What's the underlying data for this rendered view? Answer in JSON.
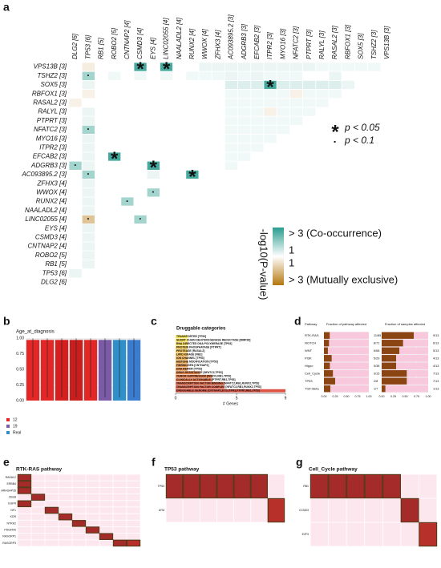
{
  "chart_data": [
    {
      "type": "heatmap",
      "panel": "a",
      "genes": [
        "VPS13B [3]",
        "TSHZ2 [3]",
        "SOX5 [3]",
        "RBFOX1 [3]",
        "RASAL2 [3]",
        "RALYL [3]",
        "PTPRT [3]",
        "NFATC2 [3]",
        "MYO16 [3]",
        "ITPR2 [3]",
        "EFCAB2 [3]",
        "ADGRB3 [3]",
        "AC093895.2 [3]",
        "ZFHX3 [4]",
        "WWOX [4]",
        "RUNX2 [4]",
        "NAALADL2 [4]",
        "LINC02055 [4]",
        "EYS [4]",
        "CSMD3 [4]",
        "CNTNAP2 [4]",
        "ROBO2 [5]",
        "RB1 [5]",
        "TP53 [6]",
        "DLG2 [6]"
      ],
      "rows": [
        [
          0,
          -0.4,
          0,
          0,
          0,
          2.6,
          0,
          2.6,
          0,
          0,
          0.3,
          0.3,
          0.3,
          0.3,
          0.3,
          0.3,
          0.3,
          0.3,
          0.3,
          0.2,
          0.2,
          0.2,
          0.2,
          0.2
        ],
        [
          0,
          1.3,
          0,
          0.2,
          0,
          0.2,
          0,
          0.2,
          0,
          0.2,
          0.2,
          0.2,
          0.3,
          0.2,
          0.3,
          0.2,
          0.2,
          0.2,
          0,
          0,
          0.3,
          0,
          0
        ],
        [
          0,
          0.3,
          0,
          0,
          0,
          0,
          0,
          0,
          0,
          0,
          0,
          0,
          0.5,
          0.5,
          0.5,
          2.6,
          0.5,
          0.5,
          0.5,
          0.5,
          0.5,
          0.3
        ],
        [
          0,
          -0.3,
          0,
          0,
          0,
          0,
          0,
          0,
          0,
          0,
          0,
          0,
          0.2,
          0.2,
          0.2,
          0.2,
          0.2,
          -0.3,
          0.2,
          0.2,
          0.2
        ],
        [
          -0.3,
          0,
          0,
          0,
          0,
          0,
          0,
          0,
          0,
          0,
          0,
          0,
          0.2,
          0.2,
          0.2,
          0.2,
          0.2,
          0.2,
          0.2,
          0.2
        ],
        [
          0,
          0.3,
          0,
          0,
          0,
          0,
          0,
          0,
          0,
          0,
          0,
          0,
          0.2,
          0.2,
          0.2,
          -0.3,
          0.2,
          0.2,
          0.2
        ],
        [
          0,
          0.3,
          0,
          0,
          0,
          0,
          0,
          0,
          0,
          0,
          0,
          0,
          0.2,
          0.2,
          0.2,
          0.2,
          0.2,
          0.2
        ],
        [
          0,
          1.3,
          0,
          0,
          0,
          0,
          0,
          0,
          0,
          0,
          0,
          0,
          0.2,
          0.2,
          0.2,
          0.2,
          0.2
        ],
        [
          0,
          0.3,
          0,
          0,
          0,
          0,
          0,
          0,
          0,
          0,
          0,
          0,
          0.2,
          0.2,
          0.2,
          0.2
        ],
        [
          0,
          0.3,
          0,
          0,
          0,
          0,
          0,
          0,
          0,
          0,
          0,
          0,
          0.2,
          0.2,
          0.2
        ],
        [
          0,
          0.3,
          0,
          2.6,
          0,
          0,
          0,
          0,
          0,
          0,
          0,
          0,
          0.2,
          0.2
        ],
        [
          1.3,
          0.3,
          0,
          0,
          0,
          0,
          2.6,
          0,
          0,
          0,
          0,
          0,
          0.2
        ],
        [
          0,
          1.3,
          0,
          0,
          0,
          0,
          0.3,
          0,
          0,
          2.6,
          0,
          0
        ],
        [
          0,
          0.3,
          0,
          0,
          0,
          0,
          0,
          0,
          0,
          0,
          0
        ],
        [
          0,
          0.3,
          0,
          0,
          0,
          0,
          1.3,
          0,
          0,
          0
        ],
        [
          0,
          0.3,
          0,
          0,
          1.3,
          0,
          0,
          0,
          0
        ],
        [
          0,
          0.3,
          0,
          0,
          0,
          0,
          0,
          0
        ],
        [
          0,
          -1.3,
          0,
          0,
          0,
          1.3,
          0
        ],
        [
          0,
          0.3,
          0,
          0,
          0,
          0
        ],
        [
          0,
          0.3,
          0,
          0,
          0
        ],
        [
          0,
          0.3,
          0,
          0
        ],
        [
          0,
          0.3,
          0
        ],
        [
          0,
          0.3
        ],
        [
          0.3
        ],
        []
      ],
      "significant": [
        {
          "row": 0,
          "col": 5,
          "label": "*"
        },
        {
          "row": 0,
          "col": 7,
          "label": "*"
        },
        {
          "row": 1,
          "col": 1,
          "label": "·"
        },
        {
          "row": 2,
          "col": 15,
          "label": "*"
        },
        {
          "row": 7,
          "col": 1,
          "label": "·"
        },
        {
          "row": 10,
          "col": 3,
          "label": "*"
        },
        {
          "row": 11,
          "col": 0,
          "label": "·"
        },
        {
          "row": 11,
          "col": 6,
          "label": "*"
        },
        {
          "row": 12,
          "col": 1,
          "label": "·"
        },
        {
          "row": 12,
          "col": 9,
          "label": "*"
        },
        {
          "row": 14,
          "col": 6,
          "label": "·"
        },
        {
          "row": 15,
          "col": 4,
          "label": "·"
        },
        {
          "row": 17,
          "col": 1,
          "label": "·"
        },
        {
          "row": 17,
          "col": 5,
          "label": "·"
        }
      ],
      "high_color": "#2a9d8f",
      "low_color": "#b5770e",
      "range": 3,
      "colorbar_title": "-log10(P-value)",
      "legend_labels": [
        "> 3 (Co-occurrence)",
        "1",
        "1",
        "> 3 (Mutually exclusive)"
      ],
      "significance_legend": [
        {
          "symbol": "*",
          "label": "p < 0.05"
        },
        {
          "symbol": "·",
          "label": "p < 0.1"
        }
      ]
    },
    {
      "type": "bar",
      "panel": "b",
      "title": "Age_at_diagnosis",
      "values": [
        0.97,
        0.97,
        0.97,
        0.97,
        0.97,
        0.97,
        0.97,
        0.97
      ],
      "colors": [
        "#e32626",
        "#e32626",
        "#d62020",
        "#c81e1e",
        "#e32626",
        "#7b5aa6",
        "#2f8fc8",
        "#3a7cd0"
      ],
      "ylim": [
        0,
        1
      ],
      "yticks": [
        {
          "value": 0,
          "label": "0.00"
        },
        {
          "value": 0.25,
          "label": "0.25"
        },
        {
          "value": 0.5,
          "label": "0.50"
        },
        {
          "value": 0.75,
          "label": "0.75"
        },
        {
          "value": 1,
          "label": "1.00"
        }
      ],
      "legend": [
        {
          "name": "12",
          "color": "#e32626"
        },
        {
          "name": "19",
          "color": "#7b5aa6"
        },
        {
          "name": "Real",
          "color": "#2f8fc8"
        }
      ]
    },
    {
      "type": "barh",
      "panel": "c",
      "title": "Druggable categories",
      "xlabel": "# Genes",
      "categories": [
        "TRANSPORTER [TP53]",
        "SHORT CHAIN DEHYDROGENASE REDUCTASE [MMP28]",
        "RNA DIRECTED DNA POLYMERASE [TP53]",
        "PROTEIN PHOSPHATASE [PTPRT]",
        "PROTEASE [RASAL2]",
        "LIPID KINASE [RB1]",
        "ION CHANNEL [TP53]",
        "HISTONE MODIFICATION [TP53]",
        "FIBRINOGEN [CNTNAP2]",
        "DNA REPAIR [TP53]",
        "DRUG RESISTANCE [NFATC2,TP53]",
        "TUMOR SUPPRESSOR [WWOX,RB1,TP53]",
        "CLINICALLY ACTIONABLE [PTPRT,RB1,TP53]",
        "TRANSCRIPTION FACTOR BINDING [NFATC2,RB1,RUNX2,TP53]",
        "TRANSCRIPTION FACTOR COMPLEX [NFATC2,RB1,RUNX2,TP53]",
        "DRUGGABLE GENOME [CNTNAP2,EYS,ITPR2,PTPRT,RB1,TP53]"
      ],
      "values": [
        1,
        1,
        1,
        1,
        1,
        1,
        1,
        1,
        1,
        1,
        2,
        3,
        3,
        4,
        4,
        9
      ],
      "xlim": [
        0,
        9
      ],
      "xticks": [
        0,
        5,
        9
      ]
    },
    {
      "type": "pathway",
      "panel": "d",
      "header": "Pathway",
      "categories": [
        "RTK-RAS",
        "NOTCH",
        "WNT",
        "PI3K",
        "Hippo",
        "Cell_Cycle",
        "TP53",
        "TGF-Beta"
      ],
      "series": [
        {
          "name": "Fraction of pathway affected",
          "values": [
            0.129,
            0.113,
            0.088,
            0.172,
            0.132,
            0.2,
            0.25,
            0.143
          ],
          "value_labels": [
            "11/85",
            "8/71",
            "6/68",
            "5/29",
            "5/38",
            "3/15",
            "2/8",
            "1/7"
          ]
        },
        {
          "name": "Fraction of samples affected",
          "values": [
            0.69,
            0.46,
            0.38,
            0.31,
            0.31,
            0.54,
            0.54,
            0.08
          ],
          "value_labels": [
            "9/13",
            "6/13",
            "5/13",
            "4/13",
            "4/13",
            "7/13",
            "7/13",
            "1/13"
          ]
        }
      ],
      "xlim": [
        0,
        1
      ],
      "xticks": [
        {
          "value": 0,
          "label": "0.00"
        },
        {
          "value": 0.25,
          "label": "0.25"
        },
        {
          "value": 0.5,
          "label": "0.50"
        },
        {
          "value": 0.75,
          "label": "0.75"
        },
        {
          "value": 1,
          "label": "1.00"
        }
      ]
    },
    {
      "type": "oncoplot",
      "panel": "e",
      "title": "RTK-RAS pathway",
      "genes": [
        "RASAL2",
        "ERBB4",
        "ARHGAP35",
        "CBLB",
        "EGFR",
        "NF1",
        "KDR",
        "NTRK2",
        "PDGFRA",
        "RASGRP1",
        "RASGRP3"
      ],
      "mutated": [
        [
          1,
          0,
          0,
          0,
          0,
          0,
          0,
          0,
          0
        ],
        [
          1,
          0,
          0,
          0,
          0,
          0,
          0,
          0,
          0
        ],
        [
          1,
          0,
          0,
          0,
          0,
          0,
          0,
          0,
          0
        ],
        [
          0,
          1,
          0,
          0,
          0,
          0,
          0,
          0,
          0
        ],
        [
          1,
          0,
          0,
          0,
          0,
          0,
          0,
          0,
          0
        ],
        [
          0,
          0,
          1,
          0,
          0,
          0,
          0,
          0,
          0
        ],
        [
          0,
          0,
          0,
          1,
          0,
          0,
          0,
          0,
          0
        ],
        [
          0,
          0,
          0,
          0,
          1,
          0,
          0,
          0,
          0
        ],
        [
          0,
          0,
          0,
          0,
          0,
          1,
          0,
          0,
          0
        ],
        [
          0,
          0,
          0,
          0,
          0,
          0,
          1,
          0,
          0
        ],
        [
          0,
          0,
          0,
          0,
          0,
          0,
          0,
          1,
          1
        ]
      ]
    },
    {
      "type": "oncoplot",
      "panel": "f",
      "title": "TP53 pathway",
      "genes": [
        "TP53",
        "ATM"
      ],
      "mutated": [
        [
          1,
          1,
          1,
          1,
          1,
          1,
          0
        ],
        [
          0,
          0,
          0,
          0,
          0,
          0,
          1
        ]
      ]
    },
    {
      "type": "oncoplot",
      "panel": "g",
      "title": "Cell_Cycle pathway",
      "genes": [
        "RB1",
        "CCND3",
        "E2F3"
      ],
      "mutated": [
        [
          1,
          1,
          1,
          1,
          1,
          0,
          0
        ],
        [
          0,
          0,
          0,
          0,
          0,
          1,
          0
        ],
        [
          0,
          0,
          0,
          0,
          0,
          0,
          1
        ]
      ]
    }
  ]
}
